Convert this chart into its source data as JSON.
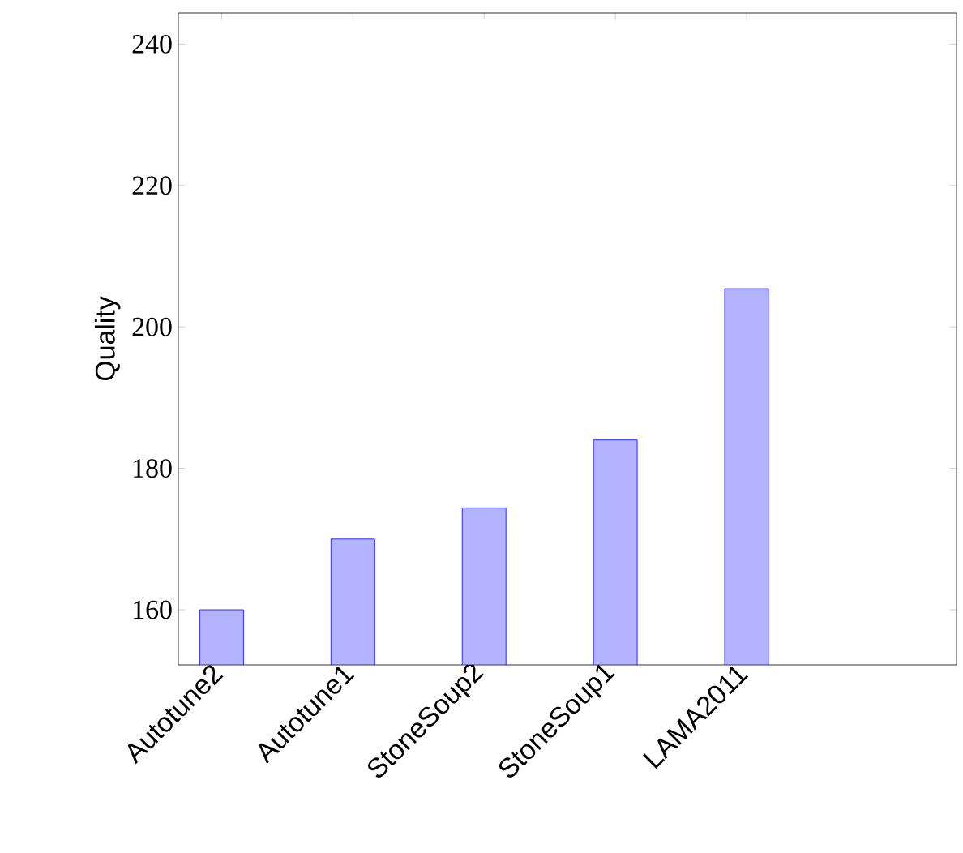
{
  "chart_data": {
    "type": "bar",
    "ylabel": "Quality",
    "categories": [
      "Autotune2",
      "Autotune1",
      "StoneSoup2",
      "StoneSoup1",
      "LAMA2011"
    ],
    "values": [
      160,
      170,
      174.4,
      184,
      205.4
    ],
    "color": "#b3b3ff",
    "ylim": [
      152.2,
      244.4
    ],
    "yticks": [
      160,
      180,
      200,
      220,
      240
    ]
  }
}
